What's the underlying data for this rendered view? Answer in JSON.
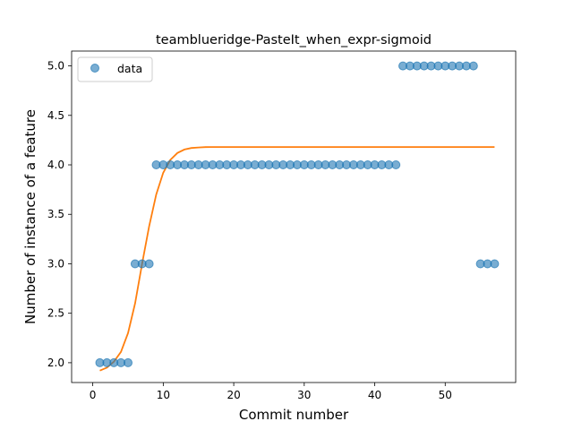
{
  "chart_data": {
    "type": "scatter",
    "title": "teamblueridge-PasteIt_when_expr-sigmoid",
    "xlabel": "Commit number",
    "ylabel": "Number of instance of a feature",
    "xlim": [
      -3,
      60
    ],
    "ylim": [
      1.8,
      5.15
    ],
    "xticks": [
      0,
      10,
      20,
      30,
      40,
      50
    ],
    "yticks": [
      2.0,
      2.5,
      3.0,
      3.5,
      4.0,
      4.5,
      5.0
    ],
    "xtick_labels": [
      "0",
      "10",
      "20",
      "30",
      "40",
      "50"
    ],
    "ytick_labels": [
      "2.0",
      "2.5",
      "3.0",
      "3.5",
      "4.0",
      "4.5",
      "5.0"
    ],
    "grid": false,
    "legend": {
      "placement": "upper-left",
      "entries": [
        "data"
      ]
    },
    "colors": {
      "points": "#1f77b4",
      "curve": "#ff7f0e"
    },
    "series": [
      {
        "name": "data",
        "kind": "points",
        "x": [
          1,
          2,
          3,
          4,
          5,
          6,
          7,
          8,
          9,
          10,
          11,
          12,
          13,
          14,
          15,
          16,
          17,
          18,
          19,
          20,
          21,
          22,
          23,
          24,
          25,
          26,
          27,
          28,
          29,
          30,
          31,
          32,
          33,
          34,
          35,
          36,
          37,
          38,
          39,
          40,
          41,
          42,
          43,
          44,
          45,
          46,
          47,
          48,
          49,
          50,
          51,
          52,
          53,
          54,
          55,
          56,
          57
        ],
        "y": [
          2,
          2,
          2,
          2,
          2,
          3,
          3,
          3,
          4,
          4,
          4,
          4,
          4,
          4,
          4,
          4,
          4,
          4,
          4,
          4,
          4,
          4,
          4,
          4,
          4,
          4,
          4,
          4,
          4,
          4,
          4,
          4,
          4,
          4,
          4,
          4,
          4,
          4,
          4,
          4,
          4,
          4,
          4,
          5,
          5,
          5,
          5,
          5,
          5,
          5,
          5,
          5,
          5,
          5,
          3,
          3,
          3
        ]
      },
      {
        "kind": "line",
        "x": [
          1,
          2,
          3,
          4,
          5,
          6,
          7,
          8,
          9,
          10,
          11,
          12,
          13,
          14,
          15,
          16,
          17,
          18,
          20,
          25,
          30,
          35,
          40,
          45,
          50,
          55,
          57
        ],
        "y": [
          1.92,
          1.95,
          2.01,
          2.11,
          2.3,
          2.6,
          3.0,
          3.38,
          3.7,
          3.92,
          4.05,
          4.12,
          4.155,
          4.17,
          4.176,
          4.179,
          4.18,
          4.18,
          4.18,
          4.18,
          4.18,
          4.18,
          4.18,
          4.18,
          4.18,
          4.18,
          4.18
        ]
      }
    ]
  }
}
